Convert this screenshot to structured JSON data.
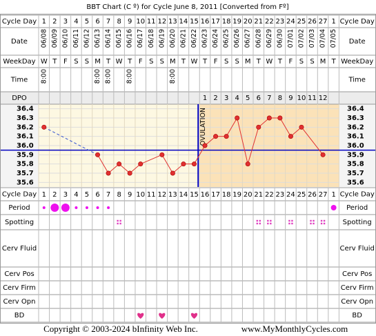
{
  "title": "BBT Chart (C º) for Cycle June 8, 2011  [Converted from Fº]",
  "row_labels": {
    "cycle_day": "Cycle Day",
    "date": "Date",
    "weekday": "WeekDay",
    "time": "Time",
    "dpo": "DPO",
    "period": "Period",
    "spotting": "Spotting",
    "cerv_fluid": "Cerv Fluid",
    "cerv_pos": "Cerv Pos",
    "cerv_firm": "Cerv Firm",
    "cerv_opn": "Cerv Opn",
    "bd": "BD"
  },
  "table": {
    "cycle_days": [
      1,
      2,
      3,
      4,
      5,
      6,
      7,
      8,
      9,
      10,
      11,
      12,
      13,
      14,
      15,
      16,
      17,
      18,
      19,
      20,
      21,
      22,
      23,
      24,
      25,
      26,
      27,
      1
    ],
    "dates": [
      "06/08",
      "06/09",
      "06/10",
      "06/11",
      "06/12",
      "06/13",
      "06/14",
      "06/15",
      "06/16",
      "06/17",
      "06/18",
      "06/19",
      "06/20",
      "06/21",
      "06/22",
      "06/23",
      "06/24",
      "06/25",
      "06/26",
      "06/27",
      "06/28",
      "06/29",
      "06/30",
      "07/01",
      "07/02",
      "07/03",
      "07/04",
      "07/05"
    ],
    "weekdays": [
      "W",
      "T",
      "F",
      "S",
      "S",
      "M",
      "T",
      "W",
      "T",
      "F",
      "S",
      "S",
      "M",
      "T",
      "W",
      "T",
      "F",
      "S",
      "S",
      "M",
      "T",
      "W",
      "T",
      "F",
      "S",
      "S",
      "M",
      "T"
    ],
    "times": [
      "8:00",
      null,
      null,
      null,
      null,
      "8:00",
      "8:00",
      null,
      "8:00",
      null,
      null,
      null,
      "8:00",
      null,
      null,
      null,
      null,
      null,
      null,
      null,
      null,
      null,
      null,
      null,
      null,
      null,
      null,
      null
    ],
    "dpo": [
      null,
      null,
      null,
      null,
      null,
      null,
      null,
      null,
      null,
      null,
      null,
      null,
      null,
      null,
      null,
      1,
      2,
      3,
      4,
      5,
      6,
      7,
      8,
      9,
      10,
      11,
      12,
      null
    ]
  },
  "chart_data": {
    "type": "line",
    "values": [
      36.2,
      null,
      null,
      null,
      null,
      35.9,
      35.7,
      35.8,
      35.7,
      35.8,
      null,
      35.9,
      35.7,
      35.8,
      35.8,
      36.0,
      36.1,
      36.1,
      36.3,
      35.8,
      36.2,
      36.3,
      36.3,
      36.1,
      36.2,
      null,
      35.9,
      null
    ],
    "color": "#e03030",
    "coverline": 35.95,
    "coverline_color": "#0000c0",
    "annotation": "OVULATION",
    "ylim": [
      35.55,
      36.45
    ],
    "yticks": [
      36.4,
      36.3,
      36.2,
      36.1,
      {
        "value": 36,
        "label": "36.0"
      },
      35.9,
      35.8,
      35.7,
      35.6
    ],
    "grid": true
  },
  "footer": {
    "copyright": "Copyright © 2003-2024 bInfinity Web Inc.",
    "site": "www.MyMonthlyCycles.com"
  }
}
